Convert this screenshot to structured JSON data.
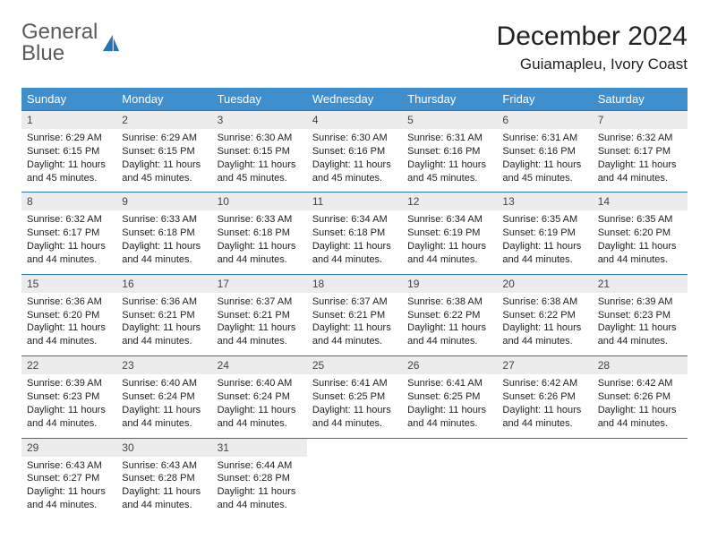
{
  "logo": {
    "textGray": "General",
    "textBlue": "Blue"
  },
  "header": {
    "monthTitle": "December 2024",
    "location": "Guiamapleu, Ivory Coast"
  },
  "colors": {
    "headerBar": "#3f8fce",
    "rule": "#2a72b5",
    "daynumBg": "#ececec",
    "logoBlue": "#2a72b5",
    "logoGray": "#5a5a5a"
  },
  "dayHeaders": [
    "Sunday",
    "Monday",
    "Tuesday",
    "Wednesday",
    "Thursday",
    "Friday",
    "Saturday"
  ],
  "weeks": [
    [
      {
        "n": "1",
        "sr": "Sunrise: 6:29 AM",
        "ss": "Sunset: 6:15 PM",
        "d1": "Daylight: 11 hours",
        "d2": "and 45 minutes."
      },
      {
        "n": "2",
        "sr": "Sunrise: 6:29 AM",
        "ss": "Sunset: 6:15 PM",
        "d1": "Daylight: 11 hours",
        "d2": "and 45 minutes."
      },
      {
        "n": "3",
        "sr": "Sunrise: 6:30 AM",
        "ss": "Sunset: 6:15 PM",
        "d1": "Daylight: 11 hours",
        "d2": "and 45 minutes."
      },
      {
        "n": "4",
        "sr": "Sunrise: 6:30 AM",
        "ss": "Sunset: 6:16 PM",
        "d1": "Daylight: 11 hours",
        "d2": "and 45 minutes."
      },
      {
        "n": "5",
        "sr": "Sunrise: 6:31 AM",
        "ss": "Sunset: 6:16 PM",
        "d1": "Daylight: 11 hours",
        "d2": "and 45 minutes."
      },
      {
        "n": "6",
        "sr": "Sunrise: 6:31 AM",
        "ss": "Sunset: 6:16 PM",
        "d1": "Daylight: 11 hours",
        "d2": "and 45 minutes."
      },
      {
        "n": "7",
        "sr": "Sunrise: 6:32 AM",
        "ss": "Sunset: 6:17 PM",
        "d1": "Daylight: 11 hours",
        "d2": "and 44 minutes."
      }
    ],
    [
      {
        "n": "8",
        "sr": "Sunrise: 6:32 AM",
        "ss": "Sunset: 6:17 PM",
        "d1": "Daylight: 11 hours",
        "d2": "and 44 minutes."
      },
      {
        "n": "9",
        "sr": "Sunrise: 6:33 AM",
        "ss": "Sunset: 6:18 PM",
        "d1": "Daylight: 11 hours",
        "d2": "and 44 minutes."
      },
      {
        "n": "10",
        "sr": "Sunrise: 6:33 AM",
        "ss": "Sunset: 6:18 PM",
        "d1": "Daylight: 11 hours",
        "d2": "and 44 minutes."
      },
      {
        "n": "11",
        "sr": "Sunrise: 6:34 AM",
        "ss": "Sunset: 6:18 PM",
        "d1": "Daylight: 11 hours",
        "d2": "and 44 minutes."
      },
      {
        "n": "12",
        "sr": "Sunrise: 6:34 AM",
        "ss": "Sunset: 6:19 PM",
        "d1": "Daylight: 11 hours",
        "d2": "and 44 minutes."
      },
      {
        "n": "13",
        "sr": "Sunrise: 6:35 AM",
        "ss": "Sunset: 6:19 PM",
        "d1": "Daylight: 11 hours",
        "d2": "and 44 minutes."
      },
      {
        "n": "14",
        "sr": "Sunrise: 6:35 AM",
        "ss": "Sunset: 6:20 PM",
        "d1": "Daylight: 11 hours",
        "d2": "and 44 minutes."
      }
    ],
    [
      {
        "n": "15",
        "sr": "Sunrise: 6:36 AM",
        "ss": "Sunset: 6:20 PM",
        "d1": "Daylight: 11 hours",
        "d2": "and 44 minutes."
      },
      {
        "n": "16",
        "sr": "Sunrise: 6:36 AM",
        "ss": "Sunset: 6:21 PM",
        "d1": "Daylight: 11 hours",
        "d2": "and 44 minutes."
      },
      {
        "n": "17",
        "sr": "Sunrise: 6:37 AM",
        "ss": "Sunset: 6:21 PM",
        "d1": "Daylight: 11 hours",
        "d2": "and 44 minutes."
      },
      {
        "n": "18",
        "sr": "Sunrise: 6:37 AM",
        "ss": "Sunset: 6:21 PM",
        "d1": "Daylight: 11 hours",
        "d2": "and 44 minutes."
      },
      {
        "n": "19",
        "sr": "Sunrise: 6:38 AM",
        "ss": "Sunset: 6:22 PM",
        "d1": "Daylight: 11 hours",
        "d2": "and 44 minutes."
      },
      {
        "n": "20",
        "sr": "Sunrise: 6:38 AM",
        "ss": "Sunset: 6:22 PM",
        "d1": "Daylight: 11 hours",
        "d2": "and 44 minutes."
      },
      {
        "n": "21",
        "sr": "Sunrise: 6:39 AM",
        "ss": "Sunset: 6:23 PM",
        "d1": "Daylight: 11 hours",
        "d2": "and 44 minutes."
      }
    ],
    [
      {
        "n": "22",
        "sr": "Sunrise: 6:39 AM",
        "ss": "Sunset: 6:23 PM",
        "d1": "Daylight: 11 hours",
        "d2": "and 44 minutes."
      },
      {
        "n": "23",
        "sr": "Sunrise: 6:40 AM",
        "ss": "Sunset: 6:24 PM",
        "d1": "Daylight: 11 hours",
        "d2": "and 44 minutes."
      },
      {
        "n": "24",
        "sr": "Sunrise: 6:40 AM",
        "ss": "Sunset: 6:24 PM",
        "d1": "Daylight: 11 hours",
        "d2": "and 44 minutes."
      },
      {
        "n": "25",
        "sr": "Sunrise: 6:41 AM",
        "ss": "Sunset: 6:25 PM",
        "d1": "Daylight: 11 hours",
        "d2": "and 44 minutes."
      },
      {
        "n": "26",
        "sr": "Sunrise: 6:41 AM",
        "ss": "Sunset: 6:25 PM",
        "d1": "Daylight: 11 hours",
        "d2": "and 44 minutes."
      },
      {
        "n": "27",
        "sr": "Sunrise: 6:42 AM",
        "ss": "Sunset: 6:26 PM",
        "d1": "Daylight: 11 hours",
        "d2": "and 44 minutes."
      },
      {
        "n": "28",
        "sr": "Sunrise: 6:42 AM",
        "ss": "Sunset: 6:26 PM",
        "d1": "Daylight: 11 hours",
        "d2": "and 44 minutes."
      }
    ],
    [
      {
        "n": "29",
        "sr": "Sunrise: 6:43 AM",
        "ss": "Sunset: 6:27 PM",
        "d1": "Daylight: 11 hours",
        "d2": "and 44 minutes."
      },
      {
        "n": "30",
        "sr": "Sunrise: 6:43 AM",
        "ss": "Sunset: 6:28 PM",
        "d1": "Daylight: 11 hours",
        "d2": "and 44 minutes."
      },
      {
        "n": "31",
        "sr": "Sunrise: 6:44 AM",
        "ss": "Sunset: 6:28 PM",
        "d1": "Daylight: 11 hours",
        "d2": "and 44 minutes."
      },
      null,
      null,
      null,
      null
    ]
  ]
}
